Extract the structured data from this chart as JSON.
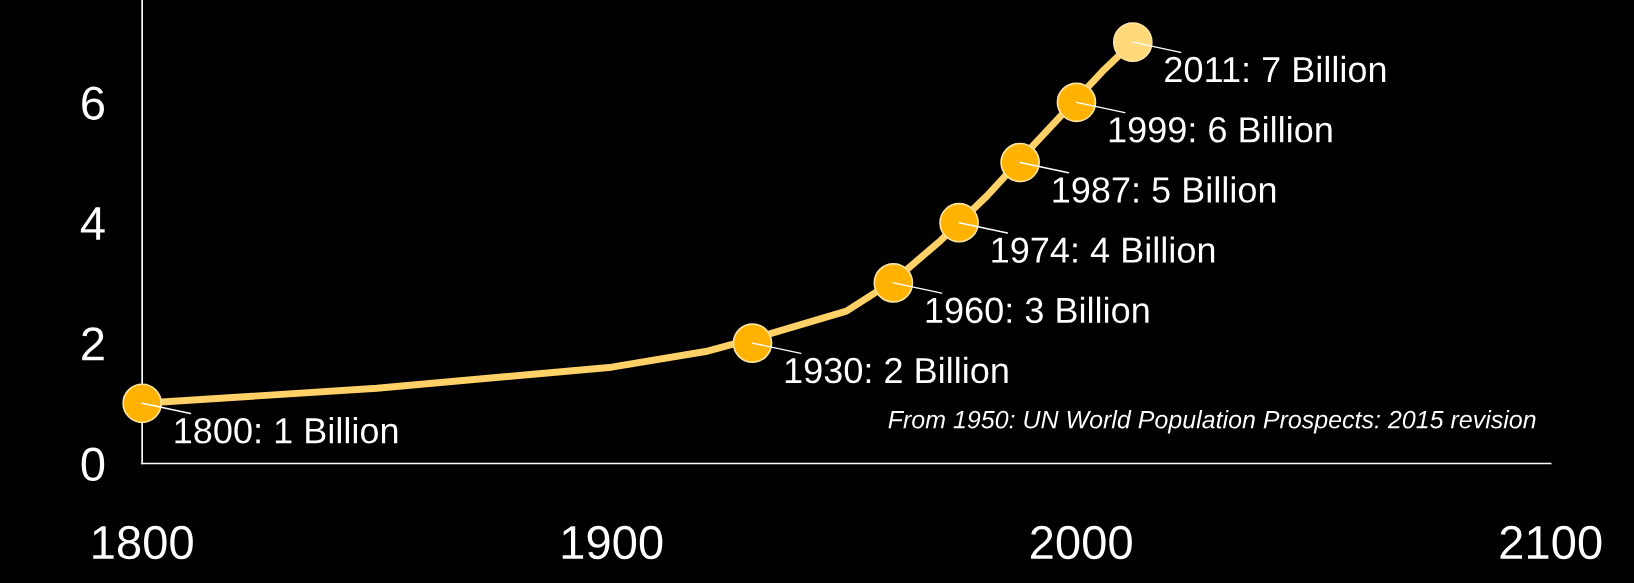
{
  "chart_data": {
    "type": "line",
    "series": [
      {
        "color": "#ffd166",
        "marker": "none",
        "x": [
          1800,
          1850,
          1900,
          1920,
          1930,
          1950,
          1960,
          1970,
          1980,
          1990,
          2005,
          2011
        ],
        "values": [
          1.0,
          1.25,
          1.6,
          1.86,
          2.07,
          2.53,
          3.03,
          3.7,
          4.45,
          5.3,
          6.55,
          7.0
        ]
      },
      {
        "type": "scatter",
        "marker": "circle",
        "x": [
          1800,
          1930,
          1960,
          1974,
          1987,
          1999,
          2011
        ],
        "values": [
          1,
          2,
          3,
          4,
          5,
          6,
          7
        ],
        "colors": [
          "#ffb300",
          "#ffb300",
          "#ffb300",
          "#ffb300",
          "#ffb300",
          "#ffb300",
          "#ffd97a"
        ]
      }
    ],
    "xlim": [
      1800,
      2100
    ],
    "xticks": [
      1800,
      1900,
      2000,
      2100
    ],
    "ylim": [
      0,
      7.7
    ],
    "yticks": [
      0,
      2,
      4,
      6
    ],
    "grid": false,
    "annotations": [
      {
        "text": "1800: 1 Billion",
        "x": 1800,
        "y": 1
      },
      {
        "text": "1930: 2 Billion",
        "x": 1930,
        "y": 2
      },
      {
        "text": "1960: 3 Billion",
        "x": 1960,
        "y": 3
      },
      {
        "text": "1974: 4 Billion",
        "x": 1974,
        "y": 4
      },
      {
        "text": "1987: 5 Billion",
        "x": 1987,
        "y": 5
      },
      {
        "text": "1999: 6 Billion",
        "x": 1999,
        "y": 6
      },
      {
        "text": "2011: 7 Billion",
        "x": 2011,
        "y": 7
      },
      "From 1950: UN World Population Prospects: 2015 revision"
    ]
  }
}
